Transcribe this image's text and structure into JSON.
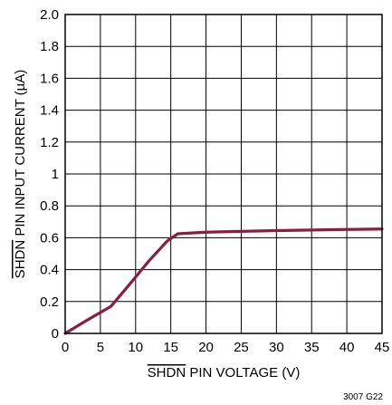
{
  "chart_data": {
    "type": "line",
    "xlabel_overbar": "SHDN",
    "xlabel_rest": " PIN VOLTAGE (V)",
    "ylabel_overbar": "SHDN",
    "ylabel_rest": " PIN INPUT CURRENT (µA)",
    "xlim": [
      0,
      45
    ],
    "ylim": [
      0,
      2.0
    ],
    "xticks": [
      0,
      5,
      10,
      15,
      20,
      25,
      30,
      35,
      40,
      45
    ],
    "xtick_labels": [
      "0",
      "5",
      "10",
      "15",
      "20",
      "25",
      "30",
      "35",
      "40",
      "45"
    ],
    "yticks": [
      0,
      0.2,
      0.4,
      0.6,
      0.8,
      1.0,
      1.2,
      1.4,
      1.6,
      1.8,
      2.0
    ],
    "ytick_labels": [
      "0",
      "0.2",
      "0.4",
      "0.6",
      "0.8",
      "1",
      "1.2",
      "1.4",
      "1.6",
      "1.8",
      "2.0"
    ],
    "grid": true,
    "series": [
      {
        "color": "#8b1e3f",
        "x": [
          0,
          3,
          6.5,
          9,
          12,
          14.5,
          16,
          20,
          30,
          40,
          45
        ],
        "y": [
          0,
          0.08,
          0.17,
          0.3,
          0.46,
          0.58,
          0.625,
          0.635,
          0.645,
          0.652,
          0.655
        ]
      }
    ]
  },
  "figure_code": "3007 G22"
}
